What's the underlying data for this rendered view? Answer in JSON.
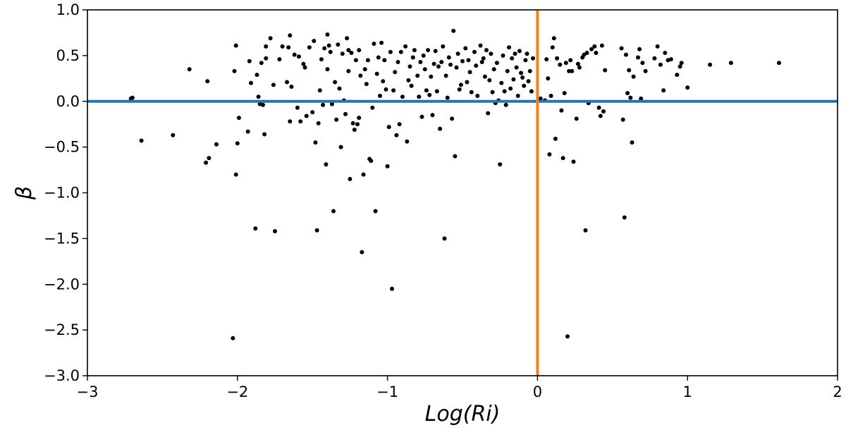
{
  "chart_data": {
    "type": "scatter",
    "title": "",
    "xlabel": "Log(Ri)",
    "ylabel": "β",
    "xlim": [
      -3,
      2
    ],
    "ylim": [
      -3,
      1
    ],
    "xticks": [
      -3,
      -2,
      -1,
      0,
      1,
      2
    ],
    "yticks": [
      1.0,
      0.5,
      0.0,
      -0.5,
      -1.0,
      -1.5,
      -2.0,
      -2.5,
      -3.0
    ],
    "xtick_labels": [
      "−3",
      "−2",
      "−1",
      "0",
      "1",
      "2"
    ],
    "ytick_labels": [
      "1.0",
      "0.5",
      "0.0",
      "−0.5",
      "−1.0",
      "−1.5",
      "−2.0",
      "−2.5",
      "−3.0"
    ],
    "grid": false,
    "reference_lines": [
      {
        "orientation": "horizontal",
        "value": 0.0,
        "color": "#1f77b4"
      },
      {
        "orientation": "vertical",
        "value": 0.0,
        "color": "#ff7f0e"
      }
    ],
    "marker_color": "#000000",
    "series": [
      {
        "points": [
          [
            -2.7,
            0.04
          ],
          [
            -2.71,
            0.03
          ],
          [
            -2.64,
            -0.43
          ],
          [
            -2.43,
            -0.37
          ],
          [
            -2.32,
            0.35
          ],
          [
            -2.21,
            -0.67
          ],
          [
            -2.19,
            -0.62
          ],
          [
            -2.2,
            0.22
          ],
          [
            -2.14,
            -0.47
          ],
          [
            -2.03,
            -2.59
          ],
          [
            -2.02,
            0.33
          ],
          [
            -2.01,
            0.61
          ],
          [
            -2.01,
            -0.8
          ],
          [
            -2.0,
            -0.46
          ],
          [
            -1.99,
            -0.18
          ],
          [
            -1.93,
            -0.33
          ],
          [
            -1.92,
            0.44
          ],
          [
            -1.91,
            0.2
          ],
          [
            -1.88,
            -1.39
          ],
          [
            -1.87,
            0.29
          ],
          [
            -1.86,
            0.05
          ],
          [
            -1.85,
            -0.03
          ],
          [
            -1.84,
            0.42
          ],
          [
            -1.83,
            -0.04
          ],
          [
            -1.81,
            0.6
          ],
          [
            -1.81,
            0.47
          ],
          [
            -1.82,
            -0.36
          ],
          [
            -1.78,
            0.69
          ],
          [
            -1.76,
            0.18
          ],
          [
            -1.75,
            -1.42
          ],
          [
            -1.72,
            0.46
          ],
          [
            -1.7,
            0.6
          ],
          [
            -1.67,
            0.21
          ],
          [
            -1.66,
            0.59
          ],
          [
            -1.65,
            0.72
          ],
          [
            -1.65,
            -0.22
          ],
          [
            -1.64,
            0.16
          ],
          [
            -1.62,
            0.51
          ],
          [
            -1.6,
            -0.07
          ],
          [
            -1.59,
            0.49
          ],
          [
            -1.58,
            -0.22
          ],
          [
            -1.56,
            0.41
          ],
          [
            -1.55,
            0.37
          ],
          [
            -1.54,
            -0.16
          ],
          [
            -1.52,
            0.59
          ],
          [
            -1.5,
            -0.12
          ],
          [
            -1.49,
            0.66
          ],
          [
            -1.48,
            -0.45
          ],
          [
            -1.47,
            -1.41
          ],
          [
            -1.46,
            -0.24
          ],
          [
            -1.45,
            0.12
          ],
          [
            -1.44,
            0.46
          ],
          [
            -1.43,
            -0.04
          ],
          [
            -1.42,
            0.58
          ],
          [
            -1.41,
            -0.69
          ],
          [
            -1.4,
            0.35
          ],
          [
            -1.4,
            0.73
          ],
          [
            -1.39,
            0.61
          ],
          [
            -1.38,
            0.54
          ],
          [
            -1.37,
            -0.03
          ],
          [
            -1.36,
            -1.2
          ],
          [
            -1.35,
            0.21
          ],
          [
            -1.34,
            -0.2
          ],
          [
            -1.33,
            0.62
          ],
          [
            -1.32,
            0.14
          ],
          [
            -1.31,
            -0.5
          ],
          [
            -1.3,
            0.52
          ],
          [
            -1.29,
            0.01
          ],
          [
            -1.28,
            -0.14
          ],
          [
            -1.27,
            0.69
          ],
          [
            -1.26,
            0.33
          ],
          [
            -1.26,
            0.56
          ],
          [
            -1.25,
            -0.85
          ],
          [
            -1.24,
            0.53
          ],
          [
            -1.23,
            -0.24
          ],
          [
            -1.22,
            -0.31
          ],
          [
            -1.21,
            0.45
          ],
          [
            -1.2,
            -0.25
          ],
          [
            -1.19,
            -0.18
          ],
          [
            -1.19,
            0.56
          ],
          [
            -1.18,
            0.28
          ],
          [
            -1.17,
            -1.65
          ],
          [
            -1.16,
            -0.8
          ],
          [
            -1.15,
            0.35
          ],
          [
            -1.14,
            0.19
          ],
          [
            -1.13,
            0.45
          ],
          [
            -1.12,
            -0.63
          ],
          [
            -1.11,
            -0.65
          ],
          [
            -1.1,
            -0.07
          ],
          [
            -1.09,
            0.63
          ],
          [
            -1.08,
            -1.2
          ],
          [
            -1.07,
            0.3
          ],
          [
            -1.06,
            0.48
          ],
          [
            -1.05,
            0.06
          ],
          [
            -1.04,
            0.64
          ],
          [
            -1.03,
            0.22
          ],
          [
            -1.02,
            0.45
          ],
          [
            -1.01,
            0.13
          ],
          [
            -1.0,
            -0.71
          ],
          [
            -0.99,
            -0.28
          ],
          [
            -0.98,
            0.54
          ],
          [
            -0.97,
            -2.05
          ],
          [
            -0.96,
            0.12
          ],
          [
            -0.95,
            0.32
          ],
          [
            -0.94,
            -0.37
          ],
          [
            -0.93,
            0.43
          ],
          [
            -0.92,
            -0.25
          ],
          [
            -0.91,
            0.54
          ],
          [
            -0.9,
            0.05
          ],
          [
            -0.88,
            0.6
          ],
          [
            -0.87,
            -0.44
          ],
          [
            -0.86,
            0.23
          ],
          [
            -0.85,
            0.38
          ],
          [
            -0.84,
            0.17
          ],
          [
            -0.83,
            0.48
          ],
          [
            -0.82,
            0.56
          ],
          [
            -0.8,
            0.28
          ],
          [
            -0.79,
            0.05
          ],
          [
            -0.78,
            0.43
          ],
          [
            -0.77,
            -0.17
          ],
          [
            -0.76,
            0.5
          ],
          [
            -0.75,
            0.35
          ],
          [
            -0.74,
            0.12
          ],
          [
            -0.73,
            0.56
          ],
          [
            -0.72,
            0.07
          ],
          [
            -0.71,
            0.27
          ],
          [
            -0.7,
            -0.15
          ],
          [
            -0.69,
            0.41
          ],
          [
            -0.68,
            0.55
          ],
          [
            -0.67,
            0.11
          ],
          [
            -0.66,
            0.38
          ],
          [
            -0.65,
            -0.3
          ],
          [
            -0.64,
            0.43
          ],
          [
            -0.63,
            0.6
          ],
          [
            -0.62,
            -1.5
          ],
          [
            -0.61,
            0.28
          ],
          [
            -0.6,
            0.04
          ],
          [
            -0.59,
            0.48
          ],
          [
            -0.58,
            0.4
          ],
          [
            -0.57,
            -0.19
          ],
          [
            -0.56,
            0.77
          ],
          [
            -0.55,
            -0.6
          ],
          [
            -0.54,
            0.37
          ],
          [
            -0.53,
            0.52
          ],
          [
            -0.52,
            0.13
          ],
          [
            -0.51,
            0.18
          ],
          [
            -0.5,
            0.44
          ],
          [
            -0.48,
            0.58
          ],
          [
            -0.47,
            0.21
          ],
          [
            -0.46,
            0.45
          ],
          [
            -0.45,
            0.32
          ],
          [
            -0.44,
            0.1
          ],
          [
            -0.42,
            0.54
          ],
          [
            -0.41,
            0.39
          ],
          [
            -0.4,
            0.06
          ],
          [
            -0.38,
            0.61
          ],
          [
            -0.37,
            0.43
          ],
          [
            -0.36,
            0.47
          ],
          [
            -0.35,
            0.27
          ],
          [
            -0.34,
            0.56
          ],
          [
            -0.33,
            -0.13
          ],
          [
            -0.32,
            0.23
          ],
          [
            -0.31,
            0.52
          ],
          [
            -0.3,
            0.1
          ],
          [
            -0.29,
            0.35
          ],
          [
            -0.28,
            -0.02
          ],
          [
            -0.27,
            0.42
          ],
          [
            -0.26,
            0.01
          ],
          [
            -0.25,
            -0.69
          ],
          [
            -0.24,
            0.2
          ],
          [
            -0.23,
            0.5
          ],
          [
            -0.22,
            0.11
          ],
          [
            -0.21,
            -0.04
          ],
          [
            -0.2,
            0.33
          ],
          [
            -0.19,
            0.59
          ],
          [
            -0.18,
            0.14
          ],
          [
            -0.17,
            0.47
          ],
          [
            -0.16,
            0.24
          ],
          [
            -0.15,
            0.52
          ],
          [
            -0.14,
            0.37
          ],
          [
            -0.13,
            0.06
          ],
          [
            -0.12,
            0.55
          ],
          [
            -0.11,
            0.31
          ],
          [
            -0.1,
            0.26
          ],
          [
            -0.09,
            0.17
          ],
          [
            -0.08,
            0.45
          ],
          [
            -0.07,
            0.52
          ],
          [
            -0.06,
            0.22
          ],
          [
            -0.05,
            0.33
          ],
          [
            -0.04,
            0.11
          ],
          [
            -0.03,
            0.47
          ],
          [
            0.02,
            0.03
          ],
          [
            0.05,
            0.01
          ],
          [
            0.06,
            0.46
          ],
          [
            0.07,
            0.25
          ],
          [
            0.08,
            -0.58
          ],
          [
            0.09,
            0.06
          ],
          [
            0.1,
            0.59
          ],
          [
            0.11,
            0.69
          ],
          [
            0.12,
            -0.41
          ],
          [
            0.13,
            0.47
          ],
          [
            0.15,
            0.4
          ],
          [
            0.16,
            -0.1
          ],
          [
            0.17,
            -0.62
          ],
          [
            0.18,
            0.09
          ],
          [
            0.19,
            0.42
          ],
          [
            0.2,
            -2.57
          ],
          [
            0.21,
            0.33
          ],
          [
            0.22,
            0.45
          ],
          [
            0.23,
            0.33
          ],
          [
            0.24,
            -0.66
          ],
          [
            0.26,
            -0.19
          ],
          [
            0.27,
            0.41
          ],
          [
            0.28,
            0.37
          ],
          [
            0.3,
            0.48
          ],
          [
            0.31,
            0.51
          ],
          [
            0.32,
            -1.41
          ],
          [
            0.33,
            0.53
          ],
          [
            0.34,
            -0.02
          ],
          [
            0.36,
            0.57
          ],
          [
            0.38,
            0.6
          ],
          [
            0.39,
            0.53
          ],
          [
            0.41,
            -0.07
          ],
          [
            0.42,
            -0.16
          ],
          [
            0.43,
            0.61
          ],
          [
            0.44,
            -0.11
          ],
          [
            0.45,
            0.34
          ],
          [
            0.56,
            0.58
          ],
          [
            0.57,
            -0.2
          ],
          [
            0.58,
            -1.27
          ],
          [
            0.59,
            0.51
          ],
          [
            0.6,
            0.09
          ],
          [
            0.61,
            0.34
          ],
          [
            0.62,
            0.04
          ],
          [
            0.63,
            -0.45
          ],
          [
            0.64,
            0.27
          ],
          [
            0.67,
            0.48
          ],
          [
            0.68,
            0.57
          ],
          [
            0.69,
            0.03
          ],
          [
            0.7,
            0.42
          ],
          [
            0.72,
            0.33
          ],
          [
            0.78,
            0.47
          ],
          [
            0.8,
            0.6
          ],
          [
            0.82,
            0.4
          ],
          [
            0.84,
            0.12
          ],
          [
            0.85,
            0.53
          ],
          [
            0.87,
            0.45
          ],
          [
            0.89,
            0.46
          ],
          [
            0.93,
            0.29
          ],
          [
            0.95,
            0.38
          ],
          [
            0.96,
            0.42
          ],
          [
            1.0,
            0.15
          ],
          [
            1.15,
            0.4
          ],
          [
            1.29,
            0.42
          ],
          [
            1.61,
            0.42
          ]
        ]
      }
    ]
  }
}
